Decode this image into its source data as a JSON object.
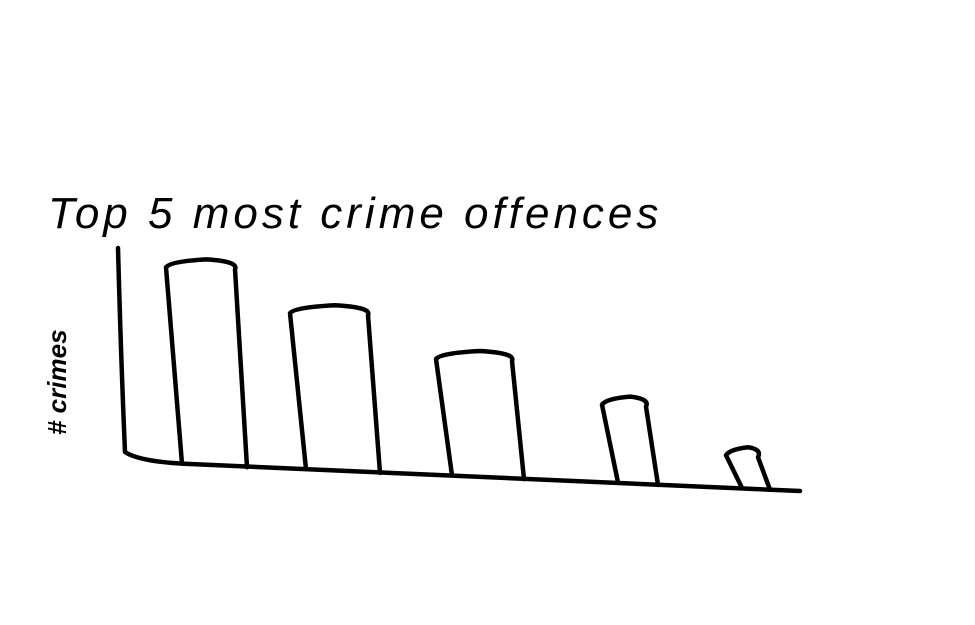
{
  "chart_data": {
    "type": "bar",
    "title": "Top 5 most crime offences",
    "y_label": "# crimes",
    "categories": [
      null,
      null,
      null,
      null,
      null
    ],
    "values": [
      210,
      168,
      127,
      87,
      40
    ],
    "color": "#000000",
    "fill": "none",
    "ylim": [
      0,
      220
    ],
    "grid": false
  }
}
